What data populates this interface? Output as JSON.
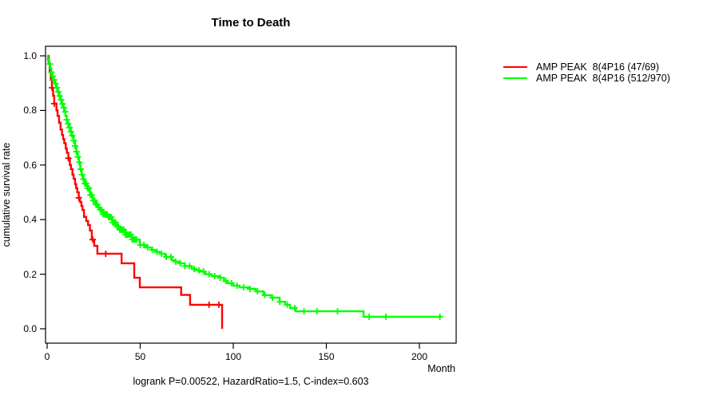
{
  "title": "Time to Death",
  "caption": "logrank P=0.00522, HazardRatio=1.5, C-index=0.603",
  "y_axis": {
    "label": "cumulative survival rate",
    "ticks": [
      {
        "value": 0.0,
        "label": "0.0"
      },
      {
        "value": 0.2,
        "label": "0.2"
      },
      {
        "value": 0.4,
        "label": "0.4"
      },
      {
        "value": 0.6,
        "label": "0.6"
      },
      {
        "value": 0.8,
        "label": "0.8"
      },
      {
        "value": 1.0,
        "label": "1.0"
      }
    ]
  },
  "x_axis": {
    "label": "Month",
    "ticks": [
      {
        "value": 0,
        "label": "0"
      },
      {
        "value": 50,
        "label": "50"
      },
      {
        "value": 100,
        "label": "100"
      },
      {
        "value": 150,
        "label": "150"
      },
      {
        "value": 200,
        "label": "200"
      }
    ]
  },
  "chart_data": {
    "type": "line",
    "subtype": "kaplan-meier-step",
    "title": "Time to Death",
    "xlabel": "Month",
    "ylabel": "cumulative survival rate",
    "xlim": [
      0,
      220
    ],
    "ylim": [
      0.0,
      1.0
    ],
    "grid": false,
    "legend_position": "right-outside",
    "series": [
      {
        "name": "AMP PEAK  8(4P16 (47/69)",
        "color": "#ff0000",
        "steps": [
          [
            0,
            1.0
          ],
          [
            0.8,
            0.971
          ],
          [
            1.4,
            0.942
          ],
          [
            2,
            0.912
          ],
          [
            2.6,
            0.883
          ],
          [
            3.2,
            0.854
          ],
          [
            3.8,
            0.825
          ],
          [
            5,
            0.8
          ],
          [
            5.6,
            0.78
          ],
          [
            6.4,
            0.755
          ],
          [
            7.2,
            0.73
          ],
          [
            8,
            0.71
          ],
          [
            8.6,
            0.695
          ],
          [
            9.2,
            0.68
          ],
          [
            10,
            0.66
          ],
          [
            10.6,
            0.645
          ],
          [
            11.4,
            0.625
          ],
          [
            12.2,
            0.6
          ],
          [
            12.8,
            0.585
          ],
          [
            13.6,
            0.565
          ],
          [
            14.2,
            0.55
          ],
          [
            15,
            0.53
          ],
          [
            15.6,
            0.515
          ],
          [
            16.2,
            0.5
          ],
          [
            17,
            0.48
          ],
          [
            17.6,
            0.465
          ],
          [
            18.4,
            0.45
          ],
          [
            19,
            0.435
          ],
          [
            19.8,
            0.41
          ],
          [
            21,
            0.395
          ],
          [
            22,
            0.38
          ],
          [
            23,
            0.36
          ],
          [
            24,
            0.327
          ],
          [
            25.3,
            0.304
          ],
          [
            27,
            0.275
          ],
          [
            40,
            0.24
          ],
          [
            46.8,
            0.187
          ],
          [
            49.8,
            0.152
          ],
          [
            72,
            0.124
          ],
          [
            76.8,
            0.088
          ],
          [
            94,
            0
          ]
        ],
        "censor_months": [
          2.6,
          3.8,
          11.4,
          17,
          24.5,
          31.5,
          87,
          92.3
        ]
      },
      {
        "name": "AMP PEAK  8(4P16 (512/970)",
        "color": "#00ff00",
        "steps": [
          [
            0,
            1.0
          ],
          [
            0.4,
            0.985
          ],
          [
            1,
            0.97
          ],
          [
            1.6,
            0.955
          ],
          [
            2.2,
            0.94
          ],
          [
            2.8,
            0.925
          ],
          [
            3.5,
            0.912
          ],
          [
            4.2,
            0.898
          ],
          [
            4.9,
            0.883
          ],
          [
            5.6,
            0.868
          ],
          [
            6.3,
            0.853
          ],
          [
            7,
            0.839
          ],
          [
            7.7,
            0.824
          ],
          [
            8.4,
            0.81
          ],
          [
            9.1,
            0.795
          ],
          [
            9.8,
            0.78
          ],
          [
            10.5,
            0.766
          ],
          [
            11.2,
            0.751
          ],
          [
            12,
            0.737
          ],
          [
            12.7,
            0.722
          ],
          [
            13.4,
            0.708
          ],
          [
            14.2,
            0.69
          ],
          [
            15,
            0.67
          ],
          [
            15.7,
            0.649
          ],
          [
            16.4,
            0.63
          ],
          [
            17.1,
            0.61
          ],
          [
            17.8,
            0.585
          ],
          [
            18.6,
            0.565
          ],
          [
            19.4,
            0.548
          ],
          [
            20.2,
            0.532
          ],
          [
            21.5,
            0.515
          ],
          [
            23,
            0.49
          ],
          [
            24.5,
            0.47
          ],
          [
            26,
            0.455
          ],
          [
            27.5,
            0.445
          ],
          [
            28.5,
            0.436
          ],
          [
            30,
            0.42
          ],
          [
            32.5,
            0.409
          ],
          [
            35,
            0.39
          ],
          [
            37,
            0.375
          ],
          [
            39,
            0.363
          ],
          [
            42,
            0.345
          ],
          [
            45.5,
            0.327
          ],
          [
            49.8,
            0.307
          ],
          [
            53,
            0.298
          ],
          [
            56.2,
            0.289
          ],
          [
            58.4,
            0.282
          ],
          [
            60.5,
            0.275
          ],
          [
            63.5,
            0.263
          ],
          [
            67,
            0.251
          ],
          [
            69,
            0.246
          ],
          [
            71.2,
            0.24
          ],
          [
            74,
            0.23
          ],
          [
            77.7,
            0.219
          ],
          [
            80,
            0.214
          ],
          [
            82,
            0.21
          ],
          [
            85,
            0.2
          ],
          [
            88.4,
            0.193
          ],
          [
            92.7,
            0.187
          ],
          [
            95,
            0.175
          ],
          [
            97,
            0.167
          ],
          [
            100,
            0.158
          ],
          [
            103.4,
            0.152
          ],
          [
            109,
            0.146
          ],
          [
            112,
            0.137
          ],
          [
            116.3,
            0.123
          ],
          [
            120.6,
            0.114
          ],
          [
            124.9,
            0.099
          ],
          [
            127.9,
            0.088
          ],
          [
            130.5,
            0.076
          ],
          [
            133.5,
            0.064
          ],
          [
            170,
            0.044
          ],
          [
            211,
            0.044
          ]
        ],
        "censor_dense": {
          "from": 1.5,
          "to": 48,
          "step": 0.75
        },
        "censor_months": [
          50,
          52,
          54,
          56.5,
          59,
          61.5,
          64,
          66.5,
          69,
          71.5,
          74,
          76.5,
          79,
          81.5,
          84,
          87,
          90,
          93,
          96,
          99,
          102,
          105.5,
          109,
          113,
          117,
          121,
          125,
          129,
          133,
          138,
          145,
          156,
          173,
          182,
          211
        ]
      }
    ]
  }
}
